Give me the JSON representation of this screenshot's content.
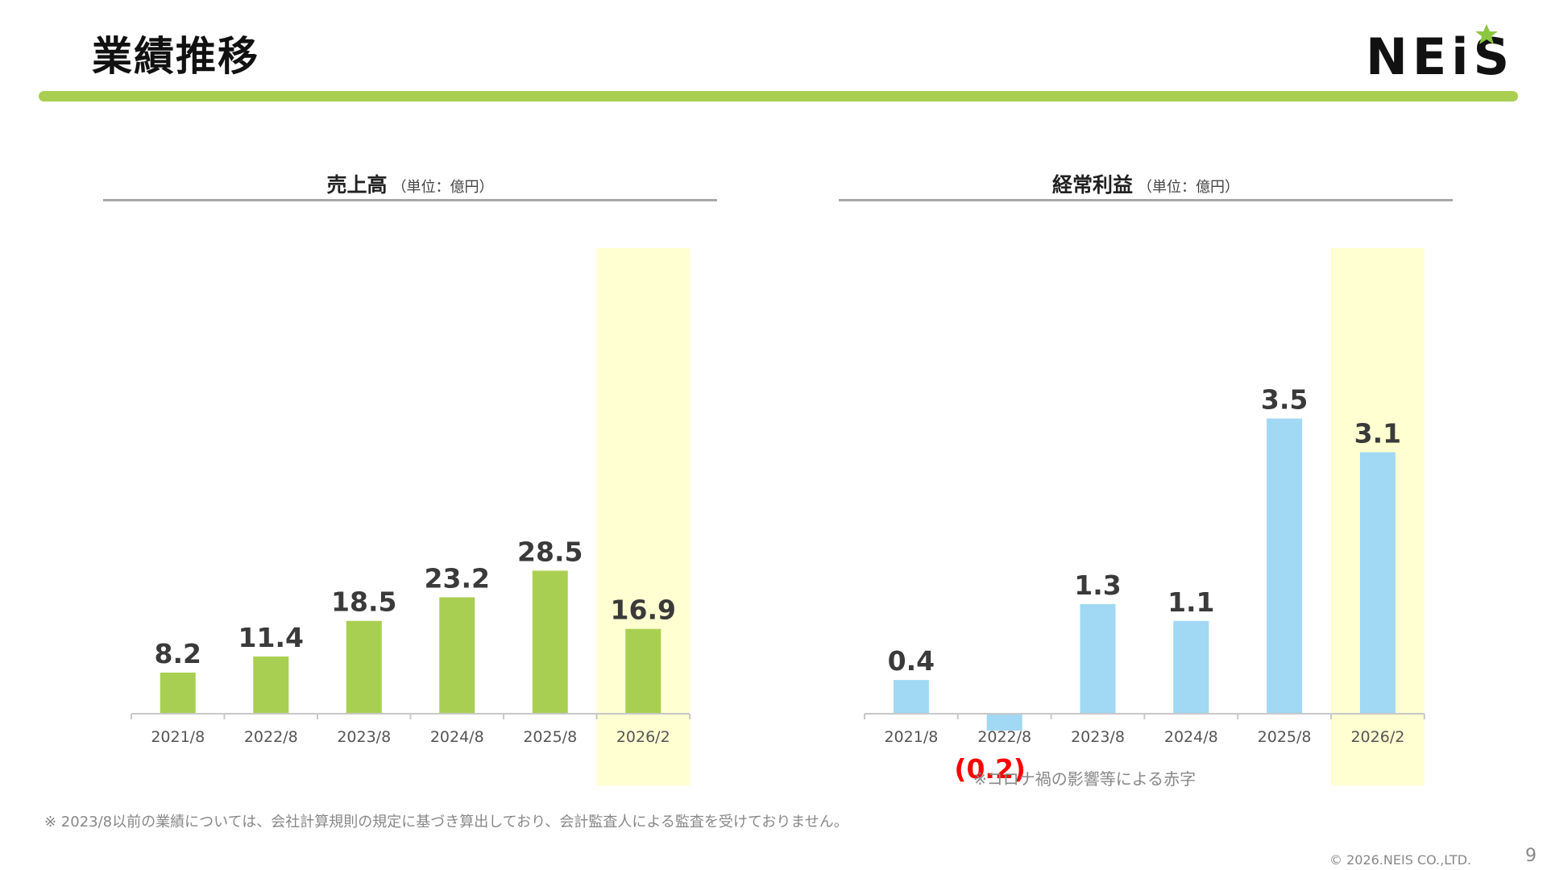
{
  "header": {
    "title": "業績推移",
    "logo_text": "NEiS",
    "accent_color": "#a9cf52",
    "logo_star_color": "#8cc63f"
  },
  "chart_data": [
    {
      "type": "bar",
      "title": "売上高",
      "unit_label": "（単位：億円）",
      "categories": [
        "2021/8",
        "2022/8",
        "2023/8",
        "2024/8",
        "2025/8",
        "2026/2"
      ],
      "values": [
        8.2,
        11.4,
        18.5,
        23.2,
        28.5,
        16.9
      ],
      "value_labels": [
        "8.2",
        "11.4",
        "18.5",
        "23.2",
        "28.5",
        "16.9"
      ],
      "bar_color": "#a9cf52",
      "highlight_category": "2026/2",
      "highlight_color": "#ffffd1",
      "ylim": [
        0,
        36
      ]
    },
    {
      "type": "bar",
      "title": "経常利益",
      "unit_label": "（単位：億円）",
      "categories": [
        "2021/8",
        "2022/8",
        "2023/8",
        "2024/8",
        "2025/8",
        "2026/2"
      ],
      "values": [
        0.4,
        -0.2,
        1.3,
        1.1,
        3.5,
        3.1
      ],
      "value_labels": [
        "0.4",
        "(0.2)",
        "1.3",
        "1.1",
        "3.5",
        "3.1"
      ],
      "negative_label_color": "#ff0000",
      "bar_color": "#a1d8f3",
      "highlight_category": "2026/2",
      "highlight_color": "#ffffd1",
      "ylim": [
        -0.2,
        4.5
      ]
    }
  ],
  "notes": {
    "corona": "※コロナ禍の影響等による赤字",
    "footnote": "※ 2023/8以前の業績については、会社計算規則の規定に基づき算出しており、会計監査人による監査を受けておりません。",
    "copyright": "© 2026.NEIS CO.,LTD.",
    "page_number": "9"
  }
}
